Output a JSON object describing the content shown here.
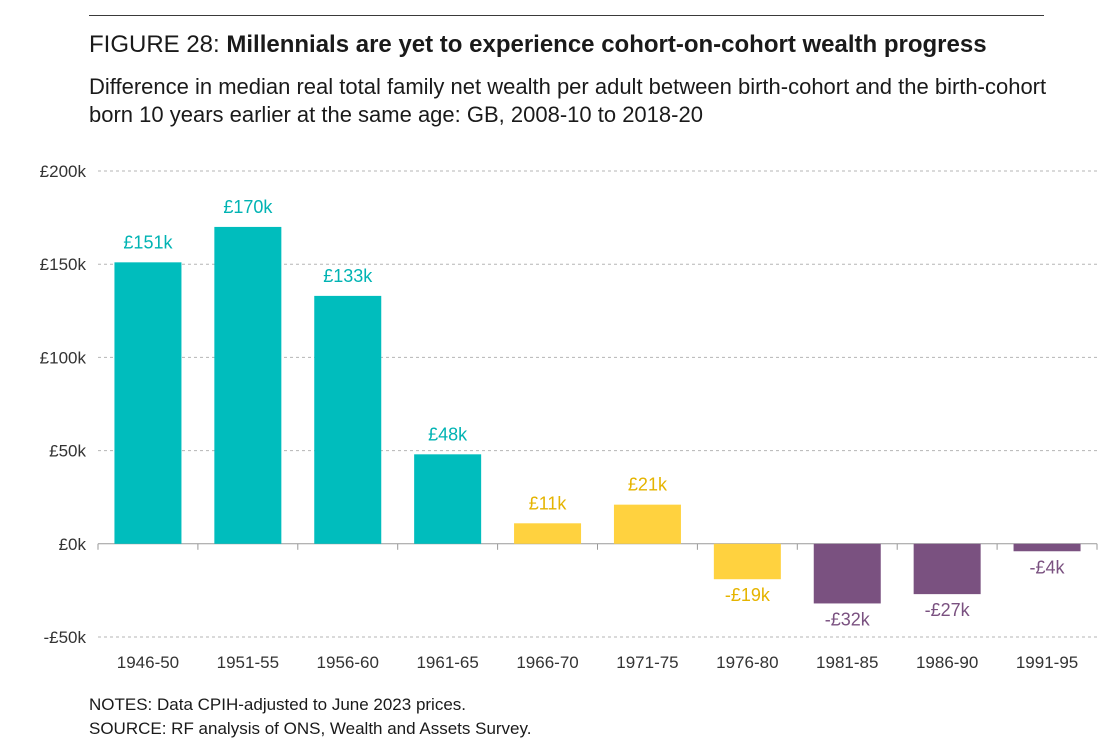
{
  "figure": {
    "label": "FIGURE 28:",
    "title": "Millennials are yet to experience cohort-on-cohort wealth progress",
    "subtitle": "Difference in median real total family net wealth per adult between birth-cohort and the birth-cohort born 10 years earlier at the same age: GB, 2008-10 to 2018-20"
  },
  "chart_data": {
    "type": "bar",
    "categories": [
      "1946-50",
      "1951-55",
      "1956-60",
      "1961-65",
      "1966-70",
      "1971-75",
      "1976-80",
      "1981-85",
      "1986-90",
      "1991-95"
    ],
    "values": [
      151,
      170,
      133,
      48,
      11,
      21,
      -19,
      -32,
      -27,
      -4
    ],
    "data_labels": [
      "£151k",
      "£170k",
      "£133k",
      "£48k",
      "£11k",
      "£21k",
      "-£19k",
      "-£32k",
      "-£27k",
      "-£4k"
    ],
    "unit": "£k",
    "y_ticks": [
      -50,
      0,
      50,
      100,
      150,
      200
    ],
    "y_tick_labels": [
      "-£50k",
      "£0k",
      "£50k",
      "£100k",
      "£150k",
      "£200k"
    ],
    "ylim": [
      -50,
      200
    ],
    "grid": true,
    "bar_colors": [
      "#00BDBD",
      "#00BDBD",
      "#00BDBD",
      "#00BDBD",
      "#FFD23F",
      "#FFD23F",
      "#FFD23F",
      "#7A5180",
      "#7A5180",
      "#7A5180"
    ],
    "label_colors": [
      "#00B3B3",
      "#00B3B3",
      "#00B3B3",
      "#00B3B3",
      "#E5B400",
      "#E5B400",
      "#E5B400",
      "#7A5180",
      "#7A5180",
      "#7A5180"
    ],
    "xlabel": "",
    "ylabel": "",
    "title": ""
  },
  "notes": {
    "notes_line": "NOTES: Data CPIH-adjusted to June 2023 prices.",
    "source_line": "SOURCE: RF analysis of ONS, Wealth and Assets Survey."
  }
}
